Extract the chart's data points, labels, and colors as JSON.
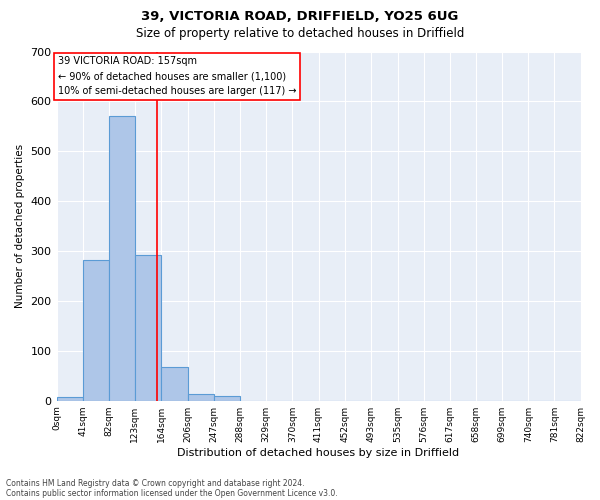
{
  "title1": "39, VICTORIA ROAD, DRIFFIELD, YO25 6UG",
  "title2": "Size of property relative to detached houses in Driffield",
  "xlabel": "Distribution of detached houses by size in Driffield",
  "ylabel": "Number of detached properties",
  "bin_edges": [
    0,
    41,
    82,
    123,
    164,
    206,
    247,
    288,
    329,
    370,
    411,
    452,
    493,
    535,
    576,
    617,
    658,
    699,
    740,
    781,
    822
  ],
  "bin_counts": [
    8,
    282,
    570,
    293,
    68,
    14,
    9,
    0,
    0,
    0,
    0,
    0,
    0,
    0,
    0,
    0,
    0,
    0,
    0,
    0
  ],
  "bar_color": "#aec6e8",
  "bar_edge_color": "#5b9bd5",
  "red_line_x": 157,
  "annotation_text1": "39 VICTORIA ROAD: 157sqm",
  "annotation_text2": "← 90% of detached houses are smaller (1,100)",
  "annotation_text3": "10% of semi-detached houses are larger (117) →",
  "ylim": [
    0,
    700
  ],
  "yticks": [
    0,
    100,
    200,
    300,
    400,
    500,
    600,
    700
  ],
  "background_color": "#e8eef7",
  "grid_color": "#ffffff",
  "fig_background": "#ffffff",
  "footnote1": "Contains HM Land Registry data © Crown copyright and database right 2024.",
  "footnote2": "Contains public sector information licensed under the Open Government Licence v3.0."
}
